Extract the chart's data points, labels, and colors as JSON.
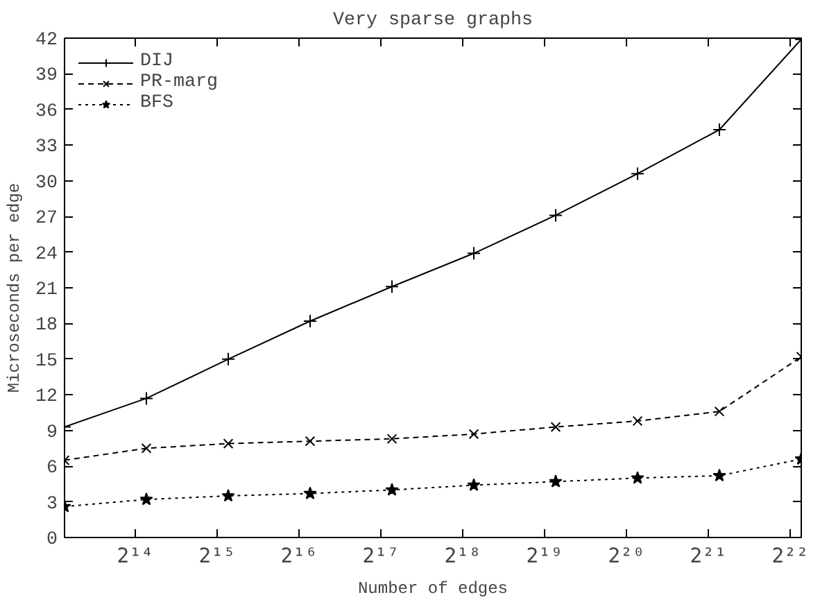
{
  "chart_data": {
    "type": "line",
    "title": "Very sparse graphs",
    "xlabel": "Number of edges",
    "ylabel": "Microseconds per edge",
    "log": "x",
    "grid": false,
    "legend": "top left",
    "x": [
      9000,
      18000,
      36000,
      72000,
      144000,
      288000,
      576000,
      1152000,
      2304000,
      4608000
    ],
    "xlim": [
      9000,
      4608000
    ],
    "xticks": [
      {
        "value": 16384,
        "label": "2¹⁴"
      },
      {
        "value": 32768,
        "label": "2¹⁵"
      },
      {
        "value": 65536,
        "label": "2¹⁶"
      },
      {
        "value": 131072,
        "label": "2¹⁷"
      },
      {
        "value": 262144,
        "label": "2¹⁸"
      },
      {
        "value": 524288,
        "label": "2¹⁹"
      },
      {
        "value": 1048576,
        "label": "2²⁰"
      },
      {
        "value": 2097152,
        "label": "2²¹"
      },
      {
        "value": 4194304,
        "label": "2²²"
      }
    ],
    "ylim": [
      0,
      42
    ],
    "yticks": [
      0,
      3,
      6,
      9,
      12,
      15,
      18,
      21,
      24,
      27,
      30,
      33,
      36,
      39,
      42
    ],
    "series": [
      {
        "name": "DIJ",
        "color": "#000000",
        "marker": "cross",
        "line_style": "solid",
        "values": [
          9.3,
          11.7,
          15.0,
          18.2,
          21.1,
          23.9,
          27.1,
          30.6,
          34.3,
          41.9
        ]
      },
      {
        "name": "PR-marg",
        "color": "#000000",
        "marker": "x",
        "line_style": "dashed",
        "values": [
          6.5,
          7.5,
          7.9,
          8.1,
          8.3,
          8.7,
          9.3,
          9.8,
          10.6,
          15.2
        ]
      },
      {
        "name": "BFS",
        "color": "#000000",
        "marker": "star",
        "line_style": "dotted",
        "values": [
          2.6,
          3.2,
          3.5,
          3.7,
          4.0,
          4.4,
          4.7,
          5.0,
          5.2,
          6.6
        ]
      }
    ]
  }
}
